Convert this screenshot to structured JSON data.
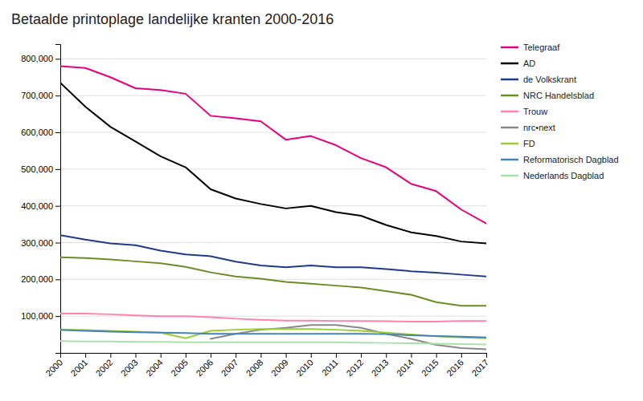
{
  "chart_data": {
    "type": "line",
    "title": "Betaalde printoplage landelijke kranten 2000-2016",
    "x": [
      2000,
      2001,
      2002,
      2003,
      2004,
      2005,
      2006,
      2007,
      2008,
      2009,
      2010,
      2011,
      2012,
      2013,
      2014,
      2015,
      2016,
      2017
    ],
    "series": [
      {
        "name": "Telegraaf",
        "color": "#E8007D",
        "values": [
          780000,
          775000,
          750000,
          720000,
          715000,
          705000,
          645000,
          638000,
          630000,
          580000,
          590000,
          565000,
          530000,
          505000,
          460000,
          440000,
          390000,
          352000
        ]
      },
      {
        "name": "AD",
        "color": "#000000",
        "values": [
          735000,
          670000,
          615000,
          575000,
          535000,
          505000,
          445000,
          420000,
          405000,
          393000,
          400000,
          383000,
          373000,
          348000,
          328000,
          318000,
          303000,
          298000
        ]
      },
      {
        "name": "de Volkskrant",
        "color": "#1F3A8A",
        "values": [
          320000,
          308000,
          298000,
          293000,
          278000,
          268000,
          263000,
          248000,
          238000,
          233000,
          238000,
          233000,
          233000,
          228000,
          222000,
          218000,
          213000,
          208000
        ]
      },
      {
        "name": "NRC Handelsblad",
        "color": "#6B8E23",
        "values": [
          260000,
          258000,
          254000,
          249000,
          244000,
          234000,
          219000,
          208000,
          202000,
          193000,
          188000,
          183000,
          178000,
          168000,
          158000,
          138000,
          128000,
          128000
        ]
      },
      {
        "name": "Trouw",
        "color": "#FF82AB",
        "values": [
          107000,
          107000,
          105000,
          102000,
          100000,
          100000,
          97000,
          93000,
          90000,
          88000,
          88000,
          87000,
          87000,
          86000,
          85000,
          85000,
          87000,
          87000
        ]
      },
      {
        "name": "nrc•next",
        "color": "#888888",
        "values": [
          null,
          null,
          null,
          null,
          null,
          null,
          38000,
          52000,
          63000,
          68000,
          76000,
          76000,
          68000,
          52000,
          38000,
          22000,
          13000,
          10000
        ]
      },
      {
        "name": "FD",
        "color": "#9ACD32",
        "values": [
          63000,
          62000,
          60000,
          58000,
          55000,
          40000,
          60000,
          63000,
          65000,
          65000,
          65000,
          63000,
          60000,
          55000,
          50000,
          45000,
          42000,
          40000
        ]
      },
      {
        "name": "Reformatorisch Dagblad",
        "color": "#4682B4",
        "values": [
          63000,
          60000,
          58000,
          56000,
          55000,
          54000,
          52000,
          52000,
          52000,
          52000,
          52000,
          52000,
          52000,
          51000,
          48000,
          46000,
          44000,
          42000
        ]
      },
      {
        "name": "Nederlands Dagblad",
        "color": "#ADDFAD",
        "values": [
          32000,
          31000,
          31000,
          30000,
          30000,
          29000,
          29000,
          29000,
          29000,
          29000,
          29000,
          29000,
          28000,
          27000,
          26000,
          25000,
          24000,
          23000
        ]
      }
    ],
    "xlim": [
      2000,
      2017
    ],
    "xticks": [
      2000,
      2001,
      2002,
      2003,
      2004,
      2005,
      2006,
      2007,
      2008,
      2009,
      2010,
      2011,
      2012,
      2013,
      2014,
      2015,
      2016,
      2017
    ],
    "ylim": [
      0,
      840000
    ],
    "yticks": [
      {
        "value": 100000,
        "label": "100,000"
      },
      {
        "value": 200000,
        "label": "200,000"
      },
      {
        "value": 300000,
        "label": "300,000"
      },
      {
        "value": 400000,
        "label": "400,000"
      },
      {
        "value": 500000,
        "label": "500,000"
      },
      {
        "value": 600000,
        "label": "600,000"
      },
      {
        "value": 700000,
        "label": "700,000"
      },
      {
        "value": 800000,
        "label": "800,000"
      }
    ],
    "grid": true,
    "legend": "right"
  }
}
